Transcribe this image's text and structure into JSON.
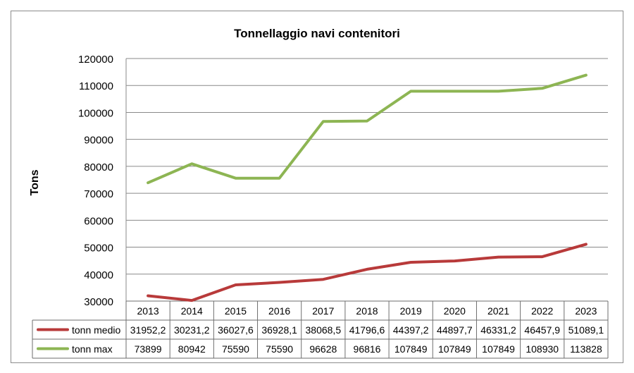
{
  "chart_data": {
    "type": "line",
    "title": "Tonnellaggio navi contenitori",
    "ylabel": "Tons",
    "xlabel": "",
    "ylim": [
      30000,
      120000
    ],
    "y_ticks": [
      "30000",
      "40000",
      "50000",
      "60000",
      "70000",
      "80000",
      "90000",
      "100000",
      "110000",
      "120000"
    ],
    "categories": [
      "2013",
      "2014",
      "2015",
      "2016",
      "2017",
      "2018",
      "2019",
      "2020",
      "2021",
      "2022",
      "2023"
    ],
    "grid": true,
    "legend": "data-table",
    "series": [
      {
        "name": "tonn medio",
        "color": "#b83a3a",
        "values": [
          31952.2,
          30231.2,
          36027.6,
          36928.1,
          38068.5,
          41796.6,
          44397.2,
          44897.7,
          46331.2,
          46457.9,
          51089.1
        ],
        "labels": [
          "31952,2",
          "30231,2",
          "36027,6",
          "36928,1",
          "38068,5",
          "41796,6",
          "44397,2",
          "44897,7",
          "46331,2",
          "46457,9",
          "51089,1"
        ]
      },
      {
        "name": "tonn max",
        "color": "#8db553",
        "values": [
          73899,
          80942,
          75590,
          75590,
          96628,
          96816,
          107849,
          107849,
          107849,
          108930,
          113828
        ],
        "labels": [
          "73899",
          "80942",
          "75590",
          "75590",
          "96628",
          "96816",
          "107849",
          "107849",
          "107849",
          "108930",
          "113828"
        ]
      }
    ]
  }
}
